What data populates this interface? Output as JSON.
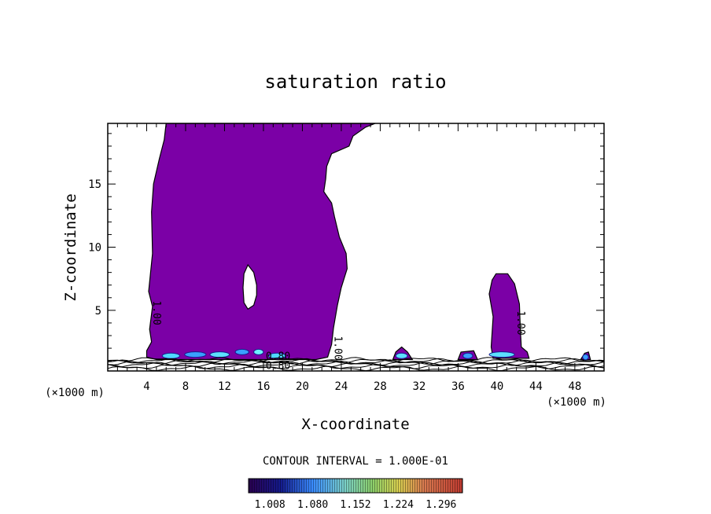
{
  "chart_data": {
    "type": "heatmap",
    "title": "saturation ratio",
    "xlabel": "X-coordinate",
    "ylabel": "Z-coordinate",
    "x_unit": "(×1000 m)",
    "x_unit_right": "(×1000 m)",
    "xlim": [
      0,
      51
    ],
    "ylim": [
      0.2,
      19.8
    ],
    "x_ticks": [
      4,
      8,
      12,
      16,
      20,
      24,
      28,
      32,
      36,
      40,
      44,
      48
    ],
    "y_ticks": [
      5,
      10,
      15
    ],
    "contour_interval_text": "CONTOUR INTERVAL = 1.000E-01",
    "colorbar": {
      "ticks": [
        "1.008",
        "1.080",
        "1.152",
        "1.224",
        "1.296"
      ],
      "min": 0.972,
      "max": 1.332
    },
    "contour_labels": [
      {
        "text": "1.00",
        "x": 4.7,
        "z": 4.8,
        "rotate": 90
      },
      {
        "text": "1.00",
        "x": 23.3,
        "z": 2.0,
        "rotate": 90
      },
      {
        "text": "1.00",
        "x": 42.1,
        "z": 4.0,
        "rotate": 90
      },
      {
        "text": "0.80",
        "x": 17.5,
        "z": 1.1,
        "rotate": 0
      },
      {
        "text": "0.80",
        "x": 17.5,
        "z": 0.35,
        "rotate": 0
      }
    ],
    "regions": [
      {
        "name": "main-cloud",
        "color": "#7b00a6",
        "polygon": [
          [
            6.0,
            19.8
          ],
          [
            27.5,
            19.8
          ],
          [
            26.5,
            19.5
          ],
          [
            25.2,
            18.8
          ],
          [
            24.8,
            18.0
          ],
          [
            23.0,
            17.4
          ],
          [
            22.5,
            16.4
          ],
          [
            22.4,
            15.4
          ],
          [
            22.2,
            14.4
          ],
          [
            23.0,
            13.5
          ],
          [
            23.3,
            12.4
          ],
          [
            23.8,
            10.8
          ],
          [
            24.5,
            9.5
          ],
          [
            24.6,
            8.3
          ],
          [
            24.0,
            6.8
          ],
          [
            23.6,
            5.4
          ],
          [
            23.2,
            3.6
          ],
          [
            23.0,
            2.3
          ],
          [
            22.6,
            1.3
          ],
          [
            21.4,
            1.1
          ],
          [
            19.0,
            1.1
          ],
          [
            14.0,
            1.1
          ],
          [
            9.0,
            1.1
          ],
          [
            5.0,
            1.1
          ],
          [
            4.0,
            1.3
          ],
          [
            4.0,
            1.8
          ],
          [
            4.5,
            2.5
          ],
          [
            4.3,
            3.5
          ],
          [
            4.6,
            5.3
          ],
          [
            4.2,
            6.5
          ],
          [
            4.6,
            9.5
          ],
          [
            4.5,
            12.8
          ],
          [
            4.7,
            15.0
          ],
          [
            5.3,
            17.0
          ],
          [
            5.8,
            18.5
          ]
        ]
      },
      {
        "name": "clear-hole",
        "color": "#ffffff",
        "polygon": [
          [
            14.4,
            8.6
          ],
          [
            15.0,
            8.0
          ],
          [
            15.3,
            7.0
          ],
          [
            15.3,
            6.2
          ],
          [
            15.0,
            5.4
          ],
          [
            14.4,
            5.1
          ],
          [
            14.0,
            5.6
          ],
          [
            13.9,
            6.8
          ],
          [
            14.0,
            7.9
          ]
        ]
      },
      {
        "name": "east-cloud",
        "color": "#7b00a6",
        "polygon": [
          [
            39.9,
            7.9
          ],
          [
            41.1,
            7.9
          ],
          [
            41.8,
            7.1
          ],
          [
            42.3,
            5.5
          ],
          [
            42.4,
            3.5
          ],
          [
            42.5,
            2.1
          ],
          [
            43.1,
            1.7
          ],
          [
            43.3,
            1.2
          ],
          [
            39.6,
            1.2
          ],
          [
            39.4,
            2.1
          ],
          [
            39.6,
            4.5
          ],
          [
            39.2,
            6.3
          ],
          [
            39.5,
            7.4
          ]
        ]
      },
      {
        "name": "small-cell-30",
        "color": "#7b00a6",
        "polygon": [
          [
            29.3,
            1.1
          ],
          [
            29.6,
            1.7
          ],
          [
            30.2,
            2.1
          ],
          [
            30.8,
            1.7
          ],
          [
            31.3,
            1.1
          ]
        ]
      },
      {
        "name": "small-cell-37",
        "color": "#7b00a6",
        "polygon": [
          [
            36.0,
            1.1
          ],
          [
            36.3,
            1.7
          ],
          [
            37.6,
            1.8
          ],
          [
            38.0,
            1.1
          ]
        ]
      },
      {
        "name": "small-cell-49",
        "color": "#7b00a6",
        "polygon": [
          [
            48.6,
            1.1
          ],
          [
            49.0,
            1.6
          ],
          [
            49.4,
            1.7
          ],
          [
            49.6,
            1.1
          ]
        ]
      }
    ],
    "bright_patches": [
      {
        "x": 6.5,
        "z": 1.4,
        "w": 1.8,
        "color": "#4fd8ff"
      },
      {
        "x": 9.0,
        "z": 1.5,
        "w": 2.2,
        "color": "#3aa0ff"
      },
      {
        "x": 11.5,
        "z": 1.5,
        "w": 2.0,
        "color": "#5ce0ff"
      },
      {
        "x": 13.8,
        "z": 1.7,
        "w": 1.4,
        "color": "#3aa0ff"
      },
      {
        "x": 15.5,
        "z": 1.7,
        "w": 1.0,
        "color": "#6ef0ff"
      },
      {
        "x": 17.4,
        "z": 1.4,
        "w": 1.8,
        "color": "#4fd8ff"
      },
      {
        "x": 30.2,
        "z": 1.4,
        "w": 1.2,
        "color": "#5ce0ff"
      },
      {
        "x": 37.0,
        "z": 1.4,
        "w": 1.0,
        "color": "#3aa0ff"
      },
      {
        "x": 40.5,
        "z": 1.5,
        "w": 2.6,
        "color": "#5ce0ff"
      },
      {
        "x": 49.1,
        "z": 1.3,
        "w": 0.6,
        "color": "#3aa0ff"
      }
    ],
    "surface_lines_z": [
      0.4,
      0.55,
      0.7,
      0.8,
      0.9,
      1.0,
      1.1
    ]
  }
}
